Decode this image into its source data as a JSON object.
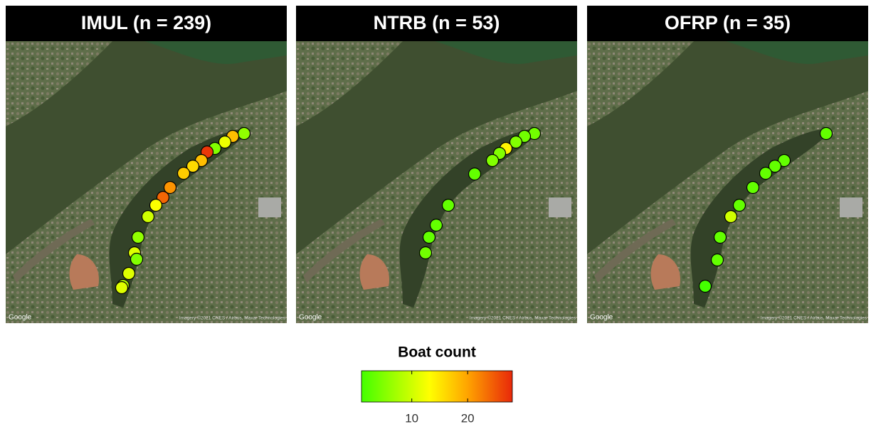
{
  "panels": [
    {
      "title": "IMUL (n = 239)",
      "counts": [
        6,
        18,
        12,
        5,
        27,
        18,
        16,
        17,
        21,
        24,
        13,
        10,
        6,
        11,
        5,
        11,
        8,
        11
      ]
    },
    {
      "title": "NTRB (n = 53)",
      "counts": [
        4,
        4,
        5,
        14,
        5,
        5,
        3,
        3,
        3,
        3,
        4
      ]
    },
    {
      "title": "OFRP (n = 35)",
      "counts": [
        3,
        3,
        3,
        3,
        3,
        3,
        10,
        3,
        3,
        1
      ]
    }
  ],
  "legend": {
    "title": "Boat count",
    "lim": [
      1,
      28
    ],
    "ticks": [
      10,
      20
    ]
  },
  "attribution": {
    "logo": "Google",
    "imagery": "Imagery ©2021 CNES / Airbus, Maxar Technologies"
  }
}
